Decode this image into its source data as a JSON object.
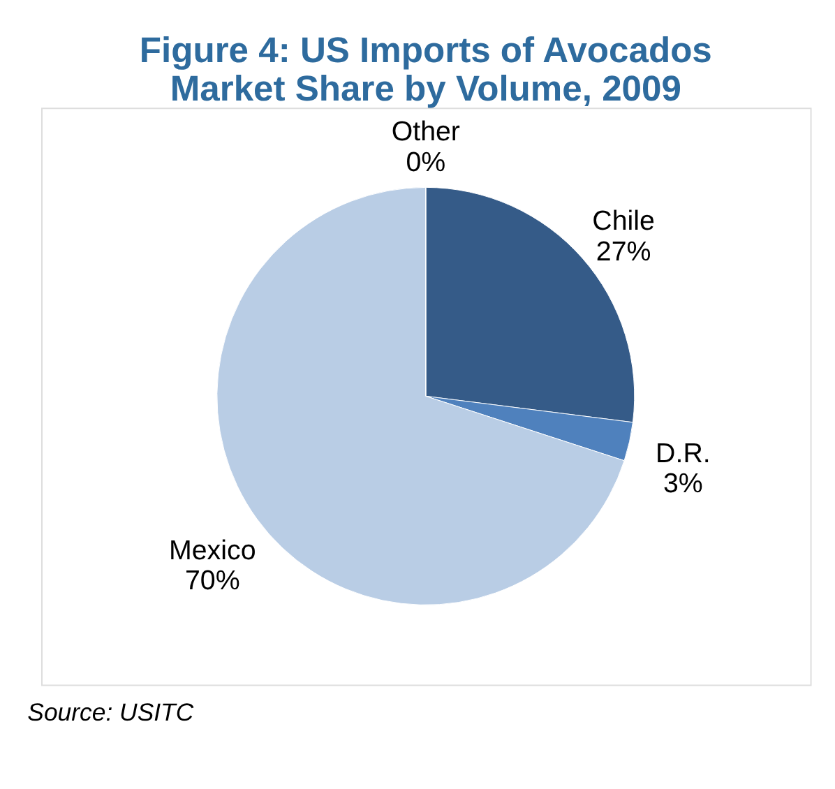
{
  "chart_data": {
    "type": "pie",
    "title": "Figure 4:  US Imports of Avocados\nMarket Share by Volume, 2009",
    "categories": [
      "Chile",
      "D.R.",
      "Mexico",
      "Other"
    ],
    "values": [
      27,
      3,
      70,
      0
    ],
    "value_labels": [
      "27%",
      "3%",
      "70%",
      "0%"
    ],
    "colors": [
      "#355b88",
      "#4f81bd",
      "#b9cde5",
      "#8eb4e3"
    ],
    "legend": false,
    "annotations": [
      "Source:  USITC"
    ]
  }
}
